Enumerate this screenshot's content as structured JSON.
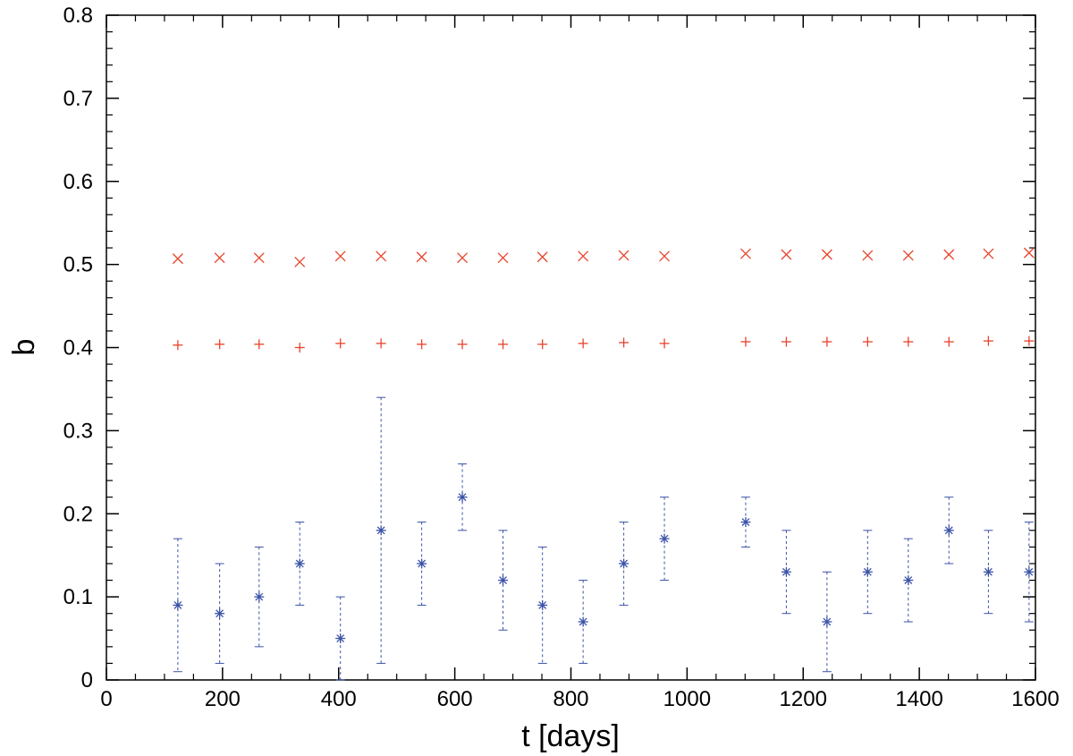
{
  "chart_data": {
    "type": "scatter",
    "xlabel": "t [days]",
    "ylabel": "b",
    "xlim": [
      0,
      1600
    ],
    "ylim": [
      0,
      0.8
    ],
    "xticks": [
      "0",
      "200",
      "400",
      "600",
      "800",
      "1000",
      "1200",
      "1400",
      "1600"
    ],
    "yticks": [
      "0",
      "0.1",
      "0.2",
      "0.3",
      "0.4",
      "0.5",
      "0.6",
      "0.7",
      "0.8"
    ],
    "grid": false,
    "series": [
      {
        "marker": "x",
        "color": "#e8432a",
        "points": [
          {
            "x": 123,
            "y": 0.507
          },
          {
            "x": 195,
            "y": 0.508
          },
          {
            "x": 263,
            "y": 0.508
          },
          {
            "x": 333,
            "y": 0.503
          },
          {
            "x": 403,
            "y": 0.51
          },
          {
            "x": 473,
            "y": 0.51
          },
          {
            "x": 543,
            "y": 0.509
          },
          {
            "x": 613,
            "y": 0.508
          },
          {
            "x": 683,
            "y": 0.508
          },
          {
            "x": 751,
            "y": 0.509
          },
          {
            "x": 821,
            "y": 0.51
          },
          {
            "x": 891,
            "y": 0.511
          },
          {
            "x": 961,
            "y": 0.51
          },
          {
            "x": 1101,
            "y": 0.513
          },
          {
            "x": 1171,
            "y": 0.512
          },
          {
            "x": 1241,
            "y": 0.512
          },
          {
            "x": 1311,
            "y": 0.511
          },
          {
            "x": 1381,
            "y": 0.511
          },
          {
            "x": 1451,
            "y": 0.512
          },
          {
            "x": 1519,
            "y": 0.513
          },
          {
            "x": 1589,
            "y": 0.514
          }
        ]
      },
      {
        "marker": "+",
        "color": "#e8432a",
        "points": [
          {
            "x": 123,
            "y": 0.403
          },
          {
            "x": 195,
            "y": 0.404
          },
          {
            "x": 263,
            "y": 0.404
          },
          {
            "x": 333,
            "y": 0.4
          },
          {
            "x": 403,
            "y": 0.405
          },
          {
            "x": 473,
            "y": 0.405
          },
          {
            "x": 543,
            "y": 0.404
          },
          {
            "x": 613,
            "y": 0.404
          },
          {
            "x": 683,
            "y": 0.404
          },
          {
            "x": 751,
            "y": 0.404
          },
          {
            "x": 821,
            "y": 0.405
          },
          {
            "x": 891,
            "y": 0.406
          },
          {
            "x": 961,
            "y": 0.405
          },
          {
            "x": 1101,
            "y": 0.407
          },
          {
            "x": 1171,
            "y": 0.407
          },
          {
            "x": 1241,
            "y": 0.407
          },
          {
            "x": 1311,
            "y": 0.407
          },
          {
            "x": 1381,
            "y": 0.407
          },
          {
            "x": 1451,
            "y": 0.407
          },
          {
            "x": 1519,
            "y": 0.408
          },
          {
            "x": 1589,
            "y": 0.408
          }
        ]
      },
      {
        "marker": "*",
        "color": "#3b53a8",
        "error_bars": "dotted",
        "points": [
          {
            "x": 123,
            "y": 0.09,
            "lo": 0.01,
            "hi": 0.17
          },
          {
            "x": 195,
            "y": 0.08,
            "lo": 0.02,
            "hi": 0.14
          },
          {
            "x": 263,
            "y": 0.1,
            "lo": 0.04,
            "hi": 0.16
          },
          {
            "x": 333,
            "y": 0.14,
            "lo": 0.09,
            "hi": 0.19
          },
          {
            "x": 403,
            "y": 0.05,
            "lo": 0.0,
            "hi": 0.1
          },
          {
            "x": 473,
            "y": 0.18,
            "lo": 0.02,
            "hi": 0.34
          },
          {
            "x": 543,
            "y": 0.14,
            "lo": 0.09,
            "hi": 0.19
          },
          {
            "x": 613,
            "y": 0.22,
            "lo": 0.18,
            "hi": 0.26
          },
          {
            "x": 683,
            "y": 0.12,
            "lo": 0.06,
            "hi": 0.18
          },
          {
            "x": 751,
            "y": 0.09,
            "lo": 0.02,
            "hi": 0.16
          },
          {
            "x": 821,
            "y": 0.07,
            "lo": 0.02,
            "hi": 0.12
          },
          {
            "x": 891,
            "y": 0.14,
            "lo": 0.09,
            "hi": 0.19
          },
          {
            "x": 961,
            "y": 0.17,
            "lo": 0.12,
            "hi": 0.22
          },
          {
            "x": 1101,
            "y": 0.19,
            "lo": 0.16,
            "hi": 0.22
          },
          {
            "x": 1171,
            "y": 0.13,
            "lo": 0.08,
            "hi": 0.18
          },
          {
            "x": 1241,
            "y": 0.07,
            "lo": 0.01,
            "hi": 0.13
          },
          {
            "x": 1311,
            "y": 0.13,
            "lo": 0.08,
            "hi": 0.18
          },
          {
            "x": 1381,
            "y": 0.12,
            "lo": 0.07,
            "hi": 0.17
          },
          {
            "x": 1451,
            "y": 0.18,
            "lo": 0.14,
            "hi": 0.22
          },
          {
            "x": 1519,
            "y": 0.13,
            "lo": 0.08,
            "hi": 0.18
          },
          {
            "x": 1589,
            "y": 0.13,
            "lo": 0.07,
            "hi": 0.19
          }
        ]
      }
    ]
  }
}
